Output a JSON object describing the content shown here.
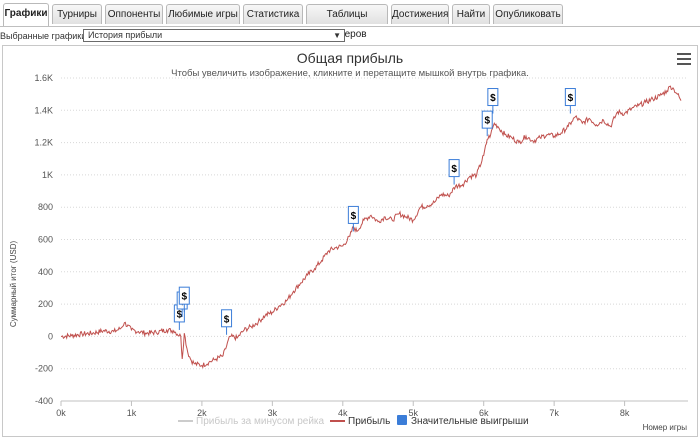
{
  "tabs": [
    {
      "label": "Графики",
      "active": true
    },
    {
      "label": "Турниры"
    },
    {
      "label": "Оппоненты"
    },
    {
      "label": "Любимые игры"
    },
    {
      "label": "Статистика"
    },
    {
      "label": "Таблицы лидеров"
    },
    {
      "label": "Достижения"
    },
    {
      "label": "Найти"
    },
    {
      "label": "Опубликовать"
    }
  ],
  "selector": {
    "label": "Выбранные графики:",
    "value": "История прибыли"
  },
  "chart_data": {
    "type": "line",
    "title": "Общая прибыль",
    "subtitle": "Чтобы увеличить изображение, кликните и перетащите мышкой внутрь графика.",
    "ylabel": "Суммарный итог (USD)",
    "xlabel": "Номер игры",
    "xlim": [
      0,
      8900
    ],
    "ylim": [
      -400,
      1600
    ],
    "x_ticks": [
      "0k",
      "1k",
      "2k",
      "3k",
      "4k",
      "5k",
      "6k",
      "7k",
      "8k"
    ],
    "y_ticks": [
      "-400",
      "-200",
      "0",
      "200",
      "400",
      "600",
      "800",
      "1K",
      "1.2K",
      "1.4K",
      "1.6K"
    ],
    "grid": "horizontal-dotted",
    "legend_position": "bottom-center",
    "series": [
      {
        "name": "Прибыль за минусом рейка",
        "color": "#cccccc",
        "hidden": true,
        "x": [],
        "y": []
      },
      {
        "name": "Прибыль",
        "color": "#c0504d",
        "x": [
          0,
          150,
          300,
          450,
          600,
          750,
          850,
          900,
          1000,
          1100,
          1200,
          1350,
          1500,
          1600,
          1700,
          1720,
          1750,
          1800,
          1850,
          1900,
          2000,
          2100,
          2200,
          2300,
          2400,
          2500,
          2600,
          2700,
          2800,
          2900,
          3000,
          3100,
          3200,
          3300,
          3400,
          3500,
          3600,
          3700,
          3800,
          3900,
          4000,
          4100,
          4150,
          4200,
          4300,
          4400,
          4500,
          4600,
          4700,
          4800,
          4900,
          5000,
          5100,
          5200,
          5300,
          5400,
          5500,
          5600,
          5700,
          5800,
          5900,
          6000,
          6050,
          6100,
          6150,
          6200,
          6300,
          6400,
          6500,
          6600,
          6700,
          6800,
          6900,
          7000,
          7100,
          7200,
          7250,
          7300,
          7400,
          7500,
          7600,
          7700,
          7800,
          7900,
          8000,
          8100,
          8200,
          8300,
          8400,
          8500,
          8600,
          8650,
          8700,
          8750,
          8800
        ],
        "y": [
          0,
          5,
          15,
          20,
          35,
          30,
          50,
          85,
          40,
          30,
          20,
          25,
          40,
          35,
          0,
          -140,
          20,
          -100,
          -150,
          -170,
          -180,
          -160,
          -140,
          -120,
          0,
          -10,
          40,
          60,
          90,
          130,
          150,
          190,
          220,
          280,
          330,
          380,
          420,
          470,
          530,
          550,
          560,
          620,
          680,
          650,
          720,
          750,
          710,
          740,
          720,
          760,
          740,
          720,
          800,
          810,
          830,
          880,
          870,
          930,
          940,
          990,
          1000,
          1120,
          1220,
          1250,
          1320,
          1300,
          1250,
          1230,
          1200,
          1240,
          1210,
          1230,
          1250,
          1240,
          1260,
          1300,
          1330,
          1360,
          1320,
          1350,
          1310,
          1340,
          1300,
          1390,
          1380,
          1410,
          1430,
          1450,
          1470,
          1490,
          1520,
          1550,
          1530,
          1500,
          1460
        ]
      },
      {
        "name": "Значительные выигрыши",
        "color": "#3b7dd8",
        "marker_label": "$",
        "x": [
          1680,
          1720,
          1750,
          2350,
          4150,
          5580,
          6050,
          6130,
          7230
        ],
        "y": [
          40,
          120,
          150,
          10,
          650,
          940,
          1240,
          1380,
          1380
        ]
      }
    ]
  }
}
